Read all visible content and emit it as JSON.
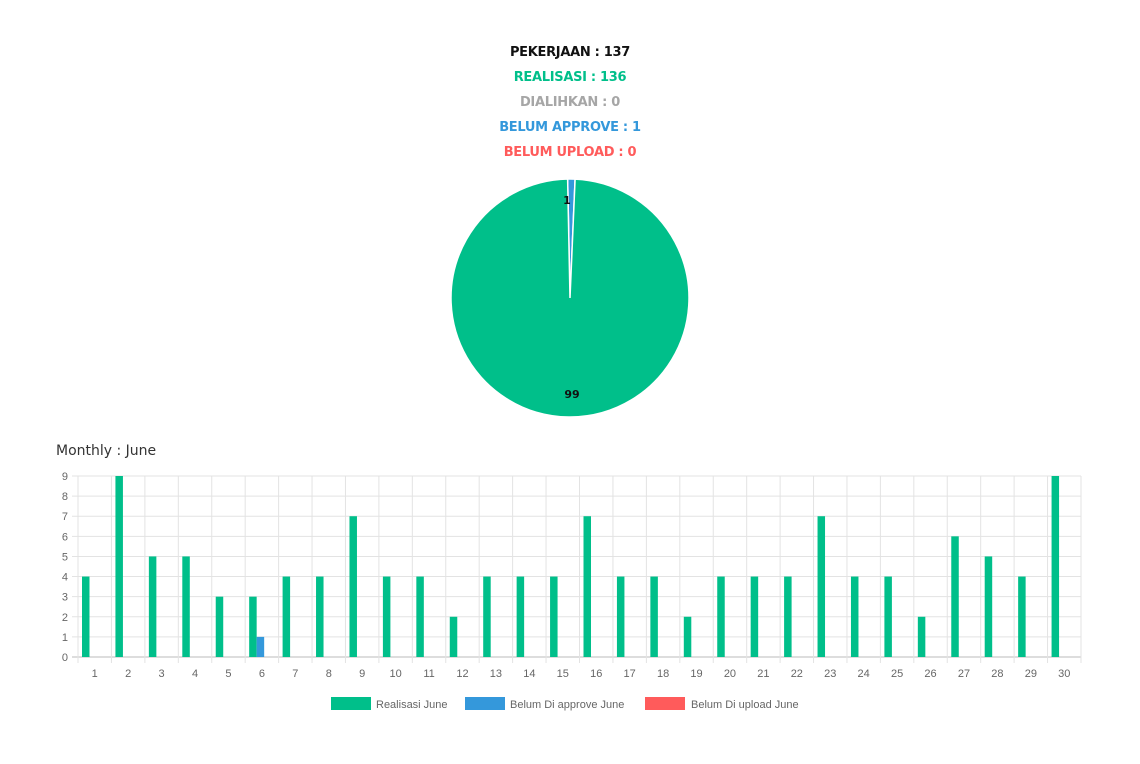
{
  "summary": {
    "pekerjaan": "PEKERJAAN : 137",
    "realisasi": "REALISASI : 136",
    "dialihkan": "DIALIHKAN : 0",
    "belum_approve": "BELUM APPROVE : 1",
    "belum_upload": "BELUM UPLOAD : 0"
  },
  "colors": {
    "realisasi": "#00bf8a",
    "dialihkan": "#a6a6a6",
    "belum_approve": "#3498db",
    "belum_upload": "#ff5b5b",
    "pekerjaan": "#111111"
  },
  "monthly_title": "Monthly : June",
  "chart_data": [
    {
      "type": "pie",
      "slices": [
        {
          "name": "Realisasi",
          "value": 99,
          "label": "99",
          "color": "#00bf8a"
        },
        {
          "name": "Belum Approve",
          "value": 1,
          "label": "1",
          "color": "#3498db"
        }
      ]
    },
    {
      "type": "bar",
      "title": "Monthly : June",
      "categories": [
        "1",
        "2",
        "3",
        "4",
        "5",
        "6",
        "7",
        "8",
        "9",
        "10",
        "11",
        "12",
        "13",
        "14",
        "15",
        "16",
        "17",
        "18",
        "19",
        "20",
        "21",
        "22",
        "23",
        "24",
        "25",
        "26",
        "27",
        "28",
        "29",
        "30"
      ],
      "series": [
        {
          "name": "Realisasi June",
          "color": "#00bf8a",
          "values": [
            4,
            9,
            5,
            5,
            3,
            3,
            4,
            4,
            7,
            4,
            4,
            2,
            4,
            4,
            4,
            7,
            4,
            4,
            2,
            4,
            4,
            4,
            7,
            4,
            4,
            2,
            6,
            5,
            4,
            9
          ]
        },
        {
          "name": "Belum Di approve June",
          "color": "#3498db",
          "values": [
            0,
            0,
            0,
            0,
            0,
            1,
            0,
            0,
            0,
            0,
            0,
            0,
            0,
            0,
            0,
            0,
            0,
            0,
            0,
            0,
            0,
            0,
            0,
            0,
            0,
            0,
            0,
            0,
            0,
            0
          ]
        },
        {
          "name": "Belum Di upload June",
          "color": "#ff5b5b",
          "values": [
            0,
            0,
            0,
            0,
            0,
            0,
            0,
            0,
            0,
            0,
            0,
            0,
            0,
            0,
            0,
            0,
            0,
            0,
            0,
            0,
            0,
            0,
            0,
            0,
            0,
            0,
            0,
            0,
            0,
            0
          ]
        }
      ],
      "ylim": [
        0,
        9
      ],
      "yticks": [
        0,
        1,
        2,
        3,
        4,
        5,
        6,
        7,
        8,
        9
      ],
      "grid": true,
      "legend": "bottom"
    }
  ]
}
